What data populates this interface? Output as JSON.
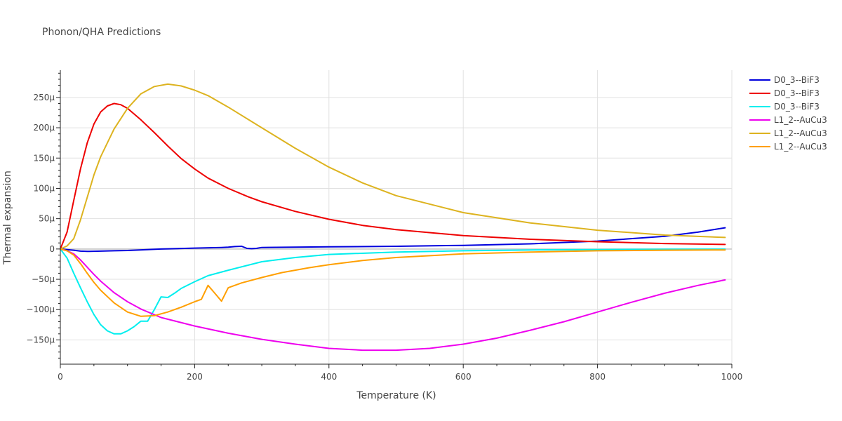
{
  "chart_data": {
    "type": "line",
    "title": "Phonon/QHA Predictions",
    "xlabel": "Temperature (K)",
    "ylabel": "Thermal expansion",
    "xlim": [
      0,
      1000
    ],
    "ylim": [
      -190,
      295
    ],
    "x_ticks": [
      0,
      200,
      400,
      600,
      800,
      1000
    ],
    "x_tick_labels": [
      "0",
      "200",
      "400",
      "600",
      "800",
      "1000"
    ],
    "y_ticks": [
      -150,
      -100,
      -50,
      0,
      50,
      100,
      150,
      200,
      250
    ],
    "y_tick_labels": [
      "−150µ",
      "−100µ",
      "−50µ",
      "0",
      "50µ",
      "100µ",
      "150µ",
      "200µ",
      "250µ"
    ],
    "y_unit": "µ",
    "grid": true,
    "legend_position": "top-right",
    "series": [
      {
        "name": "D0_3--BiF3",
        "color": "#0000dd",
        "x": [
          0,
          10,
          20,
          30,
          40,
          60,
          80,
          100,
          150,
          200,
          240,
          250,
          260,
          270,
          278,
          285,
          292,
          300,
          400,
          500,
          600,
          700,
          800,
          900,
          950,
          990
        ],
        "y": [
          0,
          -1,
          -2,
          -3.5,
          -4,
          -3.5,
          -3,
          -2.5,
          0,
          1.5,
          2.5,
          3,
          4,
          4.5,
          1,
          0.5,
          1,
          2.5,
          3.5,
          4.5,
          6,
          8.5,
          13,
          21,
          28,
          35
        ]
      },
      {
        "name": "D0_3--BiF3",
        "color": "#ee0000",
        "x": [
          0,
          10,
          20,
          30,
          40,
          50,
          60,
          70,
          80,
          90,
          100,
          120,
          140,
          160,
          180,
          200,
          220,
          250,
          280,
          300,
          350,
          400,
          450,
          500,
          600,
          700,
          800,
          900,
          990
        ],
        "y": [
          0,
          28,
          80,
          132,
          175,
          206,
          226,
          236,
          240,
          238,
          232,
          213,
          192,
          170,
          149,
          132,
          117,
          100,
          86,
          78,
          62,
          49,
          39,
          32,
          22,
          16,
          12,
          9,
          7.5
        ]
      },
      {
        "name": "D0_3--BiF3",
        "color": "#00eeee",
        "x": [
          0,
          10,
          20,
          30,
          40,
          50,
          60,
          70,
          80,
          90,
          100,
          110,
          120,
          130,
          140,
          150,
          160,
          170,
          180,
          200,
          220,
          250,
          300,
          350,
          400,
          500,
          600,
          700,
          800,
          900,
          990
        ],
        "y": [
          0,
          -15,
          -40,
          -64,
          -87,
          -108,
          -125,
          -135,
          -140,
          -140,
          -135,
          -128,
          -119,
          -119,
          -100,
          -79,
          -80,
          -73,
          -65,
          -54,
          -44,
          -35,
          -21,
          -14,
          -9,
          -5,
          -3,
          -1.5,
          -1,
          -0.5,
          -0.3
        ]
      },
      {
        "name": "L1_2--AuCu3",
        "color": "#ee00ee",
        "x": [
          0,
          10,
          20,
          30,
          40,
          50,
          60,
          80,
          100,
          120,
          150,
          200,
          250,
          300,
          350,
          400,
          450,
          500,
          550,
          600,
          650,
          700,
          750,
          800,
          850,
          900,
          950,
          990
        ],
        "y": [
          0,
          -3,
          -8,
          -18,
          -30,
          -42,
          -53,
          -72,
          -87,
          -99,
          -113,
          -127,
          -139,
          -149,
          -157,
          -164,
          -167,
          -167,
          -164,
          -157,
          -147,
          -134,
          -120,
          -104,
          -88,
          -73,
          -60,
          -51
        ]
      },
      {
        "name": "L1_2--AuCu3",
        "color": "#ddb31f",
        "x": [
          0,
          10,
          20,
          30,
          40,
          50,
          60,
          80,
          100,
          120,
          140,
          160,
          180,
          200,
          220,
          250,
          300,
          350,
          400,
          450,
          500,
          600,
          700,
          800,
          900,
          990
        ],
        "y": [
          0,
          5,
          17,
          48,
          85,
          122,
          152,
          198,
          232,
          256,
          268,
          272,
          269,
          262,
          253,
          234,
          200,
          166,
          135,
          109,
          88,
          60,
          43,
          31,
          23,
          19
        ]
      },
      {
        "name": "L1_2--AuCu3",
        "color": "#ff9f00",
        "x": [
          0,
          10,
          20,
          30,
          40,
          50,
          60,
          80,
          100,
          120,
          140,
          160,
          180,
          200,
          210,
          220,
          230,
          240,
          250,
          270,
          300,
          330,
          370,
          400,
          450,
          500,
          600,
          700,
          800,
          900,
          990
        ],
        "y": [
          0,
          -3,
          -10,
          -24,
          -40,
          -55,
          -68,
          -89,
          -104,
          -111,
          -110,
          -104,
          -96,
          -87,
          -83,
          -60,
          -73,
          -86,
          -64,
          -56,
          -47,
          -39,
          -31,
          -26,
          -19,
          -14,
          -8,
          -5,
          -3,
          -2,
          -1.5
        ]
      }
    ]
  }
}
